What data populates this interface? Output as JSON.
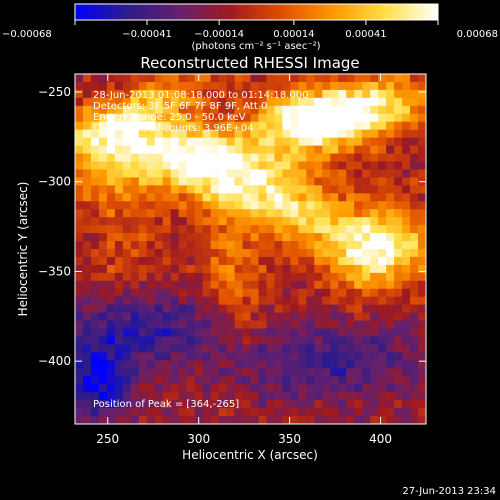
{
  "footer_timestamp": "27-Jun-2013 23:34",
  "chart_data": {
    "type": "heatmap",
    "title": "Reconstructed RHESSI Image",
    "xlabel": "Heliocentric X (arcsec)",
    "ylabel": "Heliocentric Y (arcsec)",
    "xlim": [
      232,
      425
    ],
    "ylim": [
      -435,
      -240
    ],
    "x_ticks": [
      250,
      300,
      350,
      400
    ],
    "x_tick_labels": [
      "250",
      "300",
      "350",
      "400"
    ],
    "y_ticks": [
      -250,
      -300,
      -350,
      -400
    ],
    "y_tick_labels": [
      "−250",
      "−300",
      "−350",
      "−400"
    ],
    "colorbar": {
      "range": [
        -0.00068,
        0.00068
      ],
      "ticks": [
        -0.00068,
        -0.00041,
        -0.00014,
        0.00014,
        0.00041,
        0.00068
      ],
      "tick_labels": [
        "−0.00068",
        "−0.00041",
        "−0.00014",
        "0.00014",
        "0.00041",
        "0.00068"
      ],
      "unit_label": "(photons cm⁻² s⁻¹ asec⁻²)",
      "colormap": [
        "#0000ff",
        "#2c1c8a",
        "#64206e",
        "#a01a20",
        "#e05000",
        "#ff9a00",
        "#ffe04a",
        "#ffffff"
      ]
    },
    "annotations": [
      "28-Jun-2013 01:08:18.000 to 01:14:18.000",
      "Detectors: 3F 5F 6F 7F 8F 9F, Att 0",
      "Energy Range: 25.0 - 50.0 keV",
      "Clean     Total counts: 3.96E+04"
    ],
    "peak_label": "Position of Peak = [364,-265]",
    "peak": [
      364,
      -265
    ],
    "grid": false,
    "image_features": [
      {
        "x": 337,
        "y": -310,
        "sx": 55,
        "sy": 14,
        "rot": -22,
        "amp": 0.95
      },
      {
        "x": 305,
        "y": -283,
        "sx": 45,
        "sy": 12,
        "rot": -5,
        "amp": 0.7
      },
      {
        "x": 364,
        "y": -265,
        "sx": 22,
        "sy": 11,
        "rot": 0,
        "amp": 1.0
      },
      {
        "x": 395,
        "y": -258,
        "sx": 30,
        "sy": 12,
        "rot": 10,
        "amp": 0.85
      },
      {
        "x": 265,
        "y": -262,
        "sx": 35,
        "sy": 10,
        "rot": 25,
        "amp": 0.7
      },
      {
        "x": 250,
        "y": -300,
        "sx": 18,
        "sy": 14,
        "rot": 0,
        "amp": 0.5
      },
      {
        "x": 400,
        "y": -338,
        "sx": 22,
        "sy": 14,
        "rot": 30,
        "amp": 0.8
      },
      {
        "x": 318,
        "y": -355,
        "sx": 12,
        "sy": 25,
        "rot": 10,
        "amp": 0.45
      },
      {
        "x": 270,
        "y": -380,
        "sx": 30,
        "sy": 14,
        "rot": 0,
        "amp": -0.5
      },
      {
        "x": 370,
        "y": -400,
        "sx": 40,
        "sy": 15,
        "rot": 0,
        "amp": -0.45
      },
      {
        "x": 245,
        "y": -410,
        "sx": 14,
        "sy": 14,
        "rot": 0,
        "amp": -0.8
      },
      {
        "x": 260,
        "y": -340,
        "sx": 16,
        "sy": 16,
        "rot": 0,
        "amp": 0.25
      }
    ]
  }
}
